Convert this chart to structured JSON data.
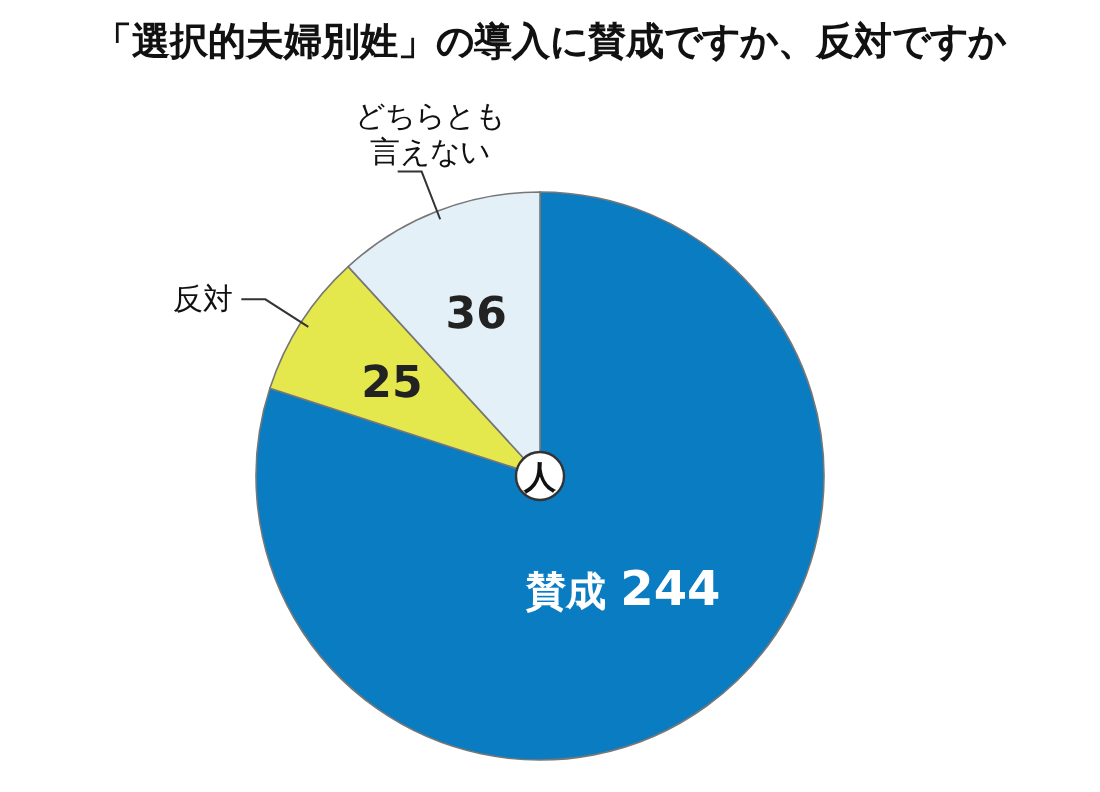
{
  "chart_data": {
    "type": "pie",
    "title": "「選択的夫婦別姓」の導入に賛成ですか、反対ですか",
    "categories": [
      "賛成",
      "反対",
      "どちらとも言えない"
    ],
    "values": [
      244,
      25,
      36
    ],
    "colors": [
      "#0a7cc1",
      "#e5e84c",
      "#e4f0f8"
    ],
    "data_labels": true,
    "annotations": [
      "人"
    ]
  }
}
